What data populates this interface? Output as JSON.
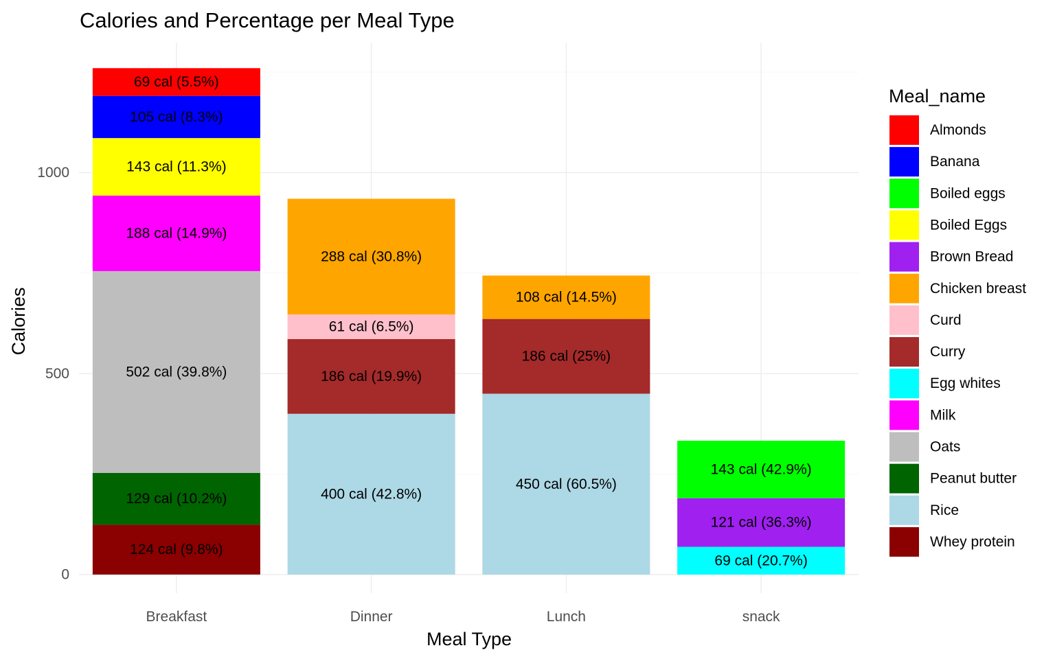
{
  "chart_data": {
    "type": "bar",
    "stacked": true,
    "title": "Calories and Percentage per Meal Type",
    "xlabel": "Meal Type",
    "ylabel": "Calories",
    "ylim": [
      0,
      1250
    ],
    "yticks": [
      0,
      500,
      1000
    ],
    "grid": true,
    "legend_title": "Meal_name",
    "legend_position": "right",
    "categories": [
      "Breakfast",
      "Dinner",
      "Lunch",
      "snack"
    ],
    "legend": [
      {
        "name": "Almonds",
        "color": "#ff0000"
      },
      {
        "name": "Banana",
        "color": "#0000ff"
      },
      {
        "name": "Boiled eggs",
        "color": "#00ff00"
      },
      {
        "name": "Boiled Eggs",
        "color": "#ffff00"
      },
      {
        "name": "Brown Bread",
        "color": "#a020f0"
      },
      {
        "name": "Chicken breast",
        "color": "#ffa500"
      },
      {
        "name": "Curd",
        "color": "#ffc0cb"
      },
      {
        "name": "Curry",
        "color": "#a52a2a"
      },
      {
        "name": "Egg whites",
        "color": "#00ffff"
      },
      {
        "name": "Milk",
        "color": "#ff00ff"
      },
      {
        "name": "Oats",
        "color": "#bebebe"
      },
      {
        "name": "Peanut butter",
        "color": "#006400"
      },
      {
        "name": "Rice",
        "color": "#add8e6"
      },
      {
        "name": "Whey protein",
        "color": "#8b0000"
      }
    ],
    "stacks": [
      {
        "category": "Breakfast",
        "segments": [
          {
            "meal": "Whey protein",
            "value": 124,
            "label": "124 cal (9.8%)"
          },
          {
            "meal": "Peanut butter",
            "value": 129,
            "label": "129 cal (10.2%)"
          },
          {
            "meal": "Oats",
            "value": 502,
            "label": "502 cal (39.8%)"
          },
          {
            "meal": "Milk",
            "value": 188,
            "label": "188 cal (14.9%)"
          },
          {
            "meal": "Boiled Eggs",
            "value": 143,
            "label": "143 cal (11.3%)"
          },
          {
            "meal": "Banana",
            "value": 105,
            "label": "105 cal (8.3%)"
          },
          {
            "meal": "Almonds",
            "value": 69,
            "label": "69 cal (5.5%)"
          }
        ]
      },
      {
        "category": "Dinner",
        "segments": [
          {
            "meal": "Rice",
            "value": 400,
            "label": "400 cal (42.8%)"
          },
          {
            "meal": "Curry",
            "value": 186,
            "label": "186 cal (19.9%)"
          },
          {
            "meal": "Curd",
            "value": 61,
            "label": "61 cal (6.5%)"
          },
          {
            "meal": "Chicken breast",
            "value": 288,
            "label": "288 cal (30.8%)"
          }
        ]
      },
      {
        "category": "Lunch",
        "segments": [
          {
            "meal": "Rice",
            "value": 450,
            "label": "450 cal (60.5%)"
          },
          {
            "meal": "Curry",
            "value": 186,
            "label": "186 cal (25%)"
          },
          {
            "meal": "Chicken breast",
            "value": 108,
            "label": "108 cal (14.5%)"
          }
        ]
      },
      {
        "category": "snack",
        "segments": [
          {
            "meal": "Egg whites",
            "value": 69,
            "label": "69 cal (20.7%)"
          },
          {
            "meal": "Brown Bread",
            "value": 121,
            "label": "121 cal (36.3%)"
          },
          {
            "meal": "Boiled eggs",
            "value": 143,
            "label": "143 cal (42.9%)"
          }
        ]
      }
    ]
  }
}
